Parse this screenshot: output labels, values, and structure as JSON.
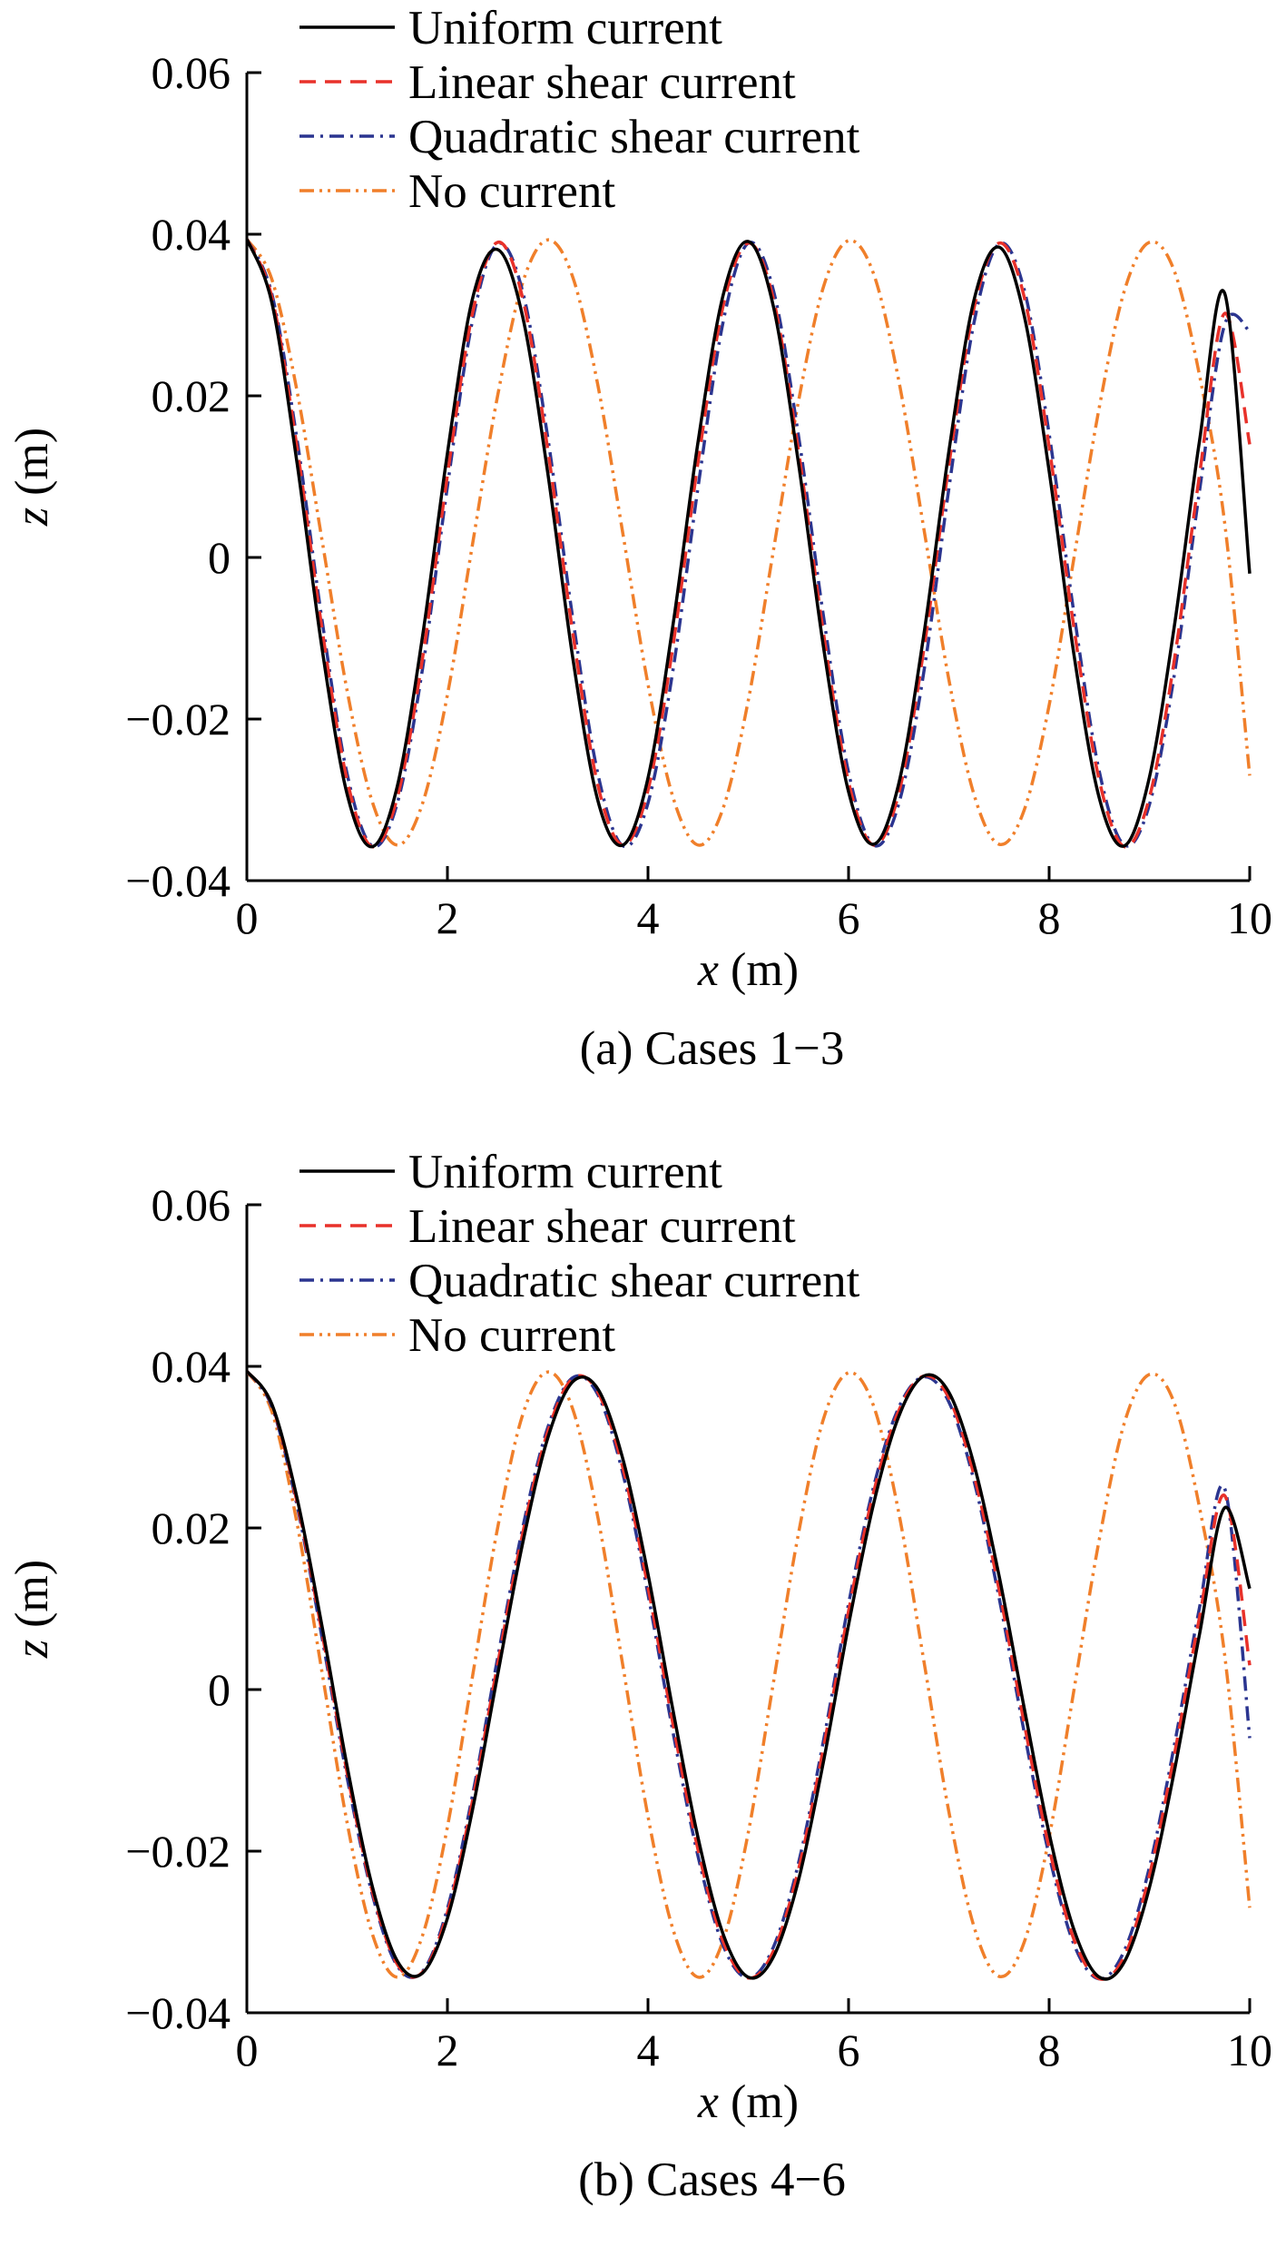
{
  "chart_data": [
    {
      "type": "line",
      "caption": "(a) Cases 1−3",
      "xlabel": {
        "var": "x",
        "unit": " (m)"
      },
      "ylabel": {
        "var": "z",
        "unit": " (m)"
      },
      "xlim": [
        0,
        10
      ],
      "ylim": [
        -0.04,
        0.06
      ],
      "xticks": [
        "0",
        "2",
        "4",
        "6",
        "8",
        "10"
      ],
      "yticks": [
        "−0.04",
        "−0.02",
        "0",
        "0.02",
        "0.04",
        "0.06"
      ],
      "grid": false,
      "legend_position": "top",
      "x": [
        0,
        0.25,
        0.5,
        0.75,
        1,
        1.25,
        1.5,
        1.75,
        2,
        2.25,
        2.5,
        2.75,
        3,
        3.25,
        3.5,
        3.75,
        4,
        4.25,
        4.5,
        4.75,
        5,
        5.25,
        5.5,
        5.75,
        6,
        6.25,
        6.5,
        6.75,
        7,
        7.25,
        7.5,
        7.75,
        8,
        8.25,
        8.5,
        8.75,
        9,
        9.25,
        9.5,
        9.75,
        10
      ],
      "series": [
        {
          "name": "Uniform current",
          "color": "#000000",
          "dash": "solid",
          "values": [
            0.0394,
            0.0315,
            0.0117,
            -0.0113,
            -0.0293,
            -0.0358,
            -0.0283,
            -0.0099,
            0.0129,
            0.032,
            0.0381,
            0.0298,
            0.0105,
            -0.0124,
            -0.0301,
            -0.0356,
            -0.0273,
            -0.0083,
            0.0144,
            0.0325,
            0.0391,
            0.0311,
            0.0117,
            -0.0111,
            -0.029,
            -0.0355,
            -0.028,
            -0.0096,
            0.0131,
            0.0318,
            0.0384,
            0.03,
            0.0107,
            -0.0122,
            -0.0298,
            -0.0357,
            -0.0272,
            -0.0084,
            0.0145,
            0.0327,
            -0.002
          ]
        },
        {
          "name": "Linear shear current",
          "color": "#e8312a",
          "dash": "dashed",
          "values": [
            0.0394,
            0.0322,
            0.0136,
            -0.0089,
            -0.0276,
            -0.0358,
            -0.0297,
            -0.0126,
            0.0102,
            0.0302,
            0.039,
            0.0321,
            0.0134,
            -0.0093,
            -0.0282,
            -0.0356,
            -0.0288,
            -0.0109,
            0.0119,
            0.0312,
            0.0389,
            0.032,
            0.0132,
            -0.0094,
            -0.0278,
            -0.0356,
            -0.0292,
            -0.0114,
            0.0114,
            0.0308,
            0.0389,
            0.0323,
            0.0137,
            -0.0089,
            -0.0276,
            -0.0358,
            -0.0297,
            -0.0126,
            0.0103,
            0.0302,
            0.014
          ]
        },
        {
          "name": "Quadratic shear current",
          "color": "#2b3590",
          "dash": "dashdot",
          "values": [
            0.0394,
            0.0326,
            0.0146,
            -0.0078,
            -0.0268,
            -0.0357,
            -0.0304,
            -0.0139,
            0.0088,
            0.0293,
            0.0388,
            0.0329,
            0.0149,
            -0.0075,
            -0.0268,
            -0.0357,
            -0.0304,
            -0.0139,
            0.0088,
            0.0292,
            0.0389,
            0.0331,
            0.0151,
            -0.0073,
            -0.0266,
            -0.0356,
            -0.0305,
            -0.0142,
            0.0085,
            0.029,
            0.0388,
            0.0332,
            0.0153,
            -0.0071,
            -0.0265,
            -0.0356,
            -0.0306,
            -0.0144,
            0.0083,
            0.0288,
            0.028
          ]
        },
        {
          "name": "No current",
          "color": "#f07f2a",
          "dash": "dashdotdot",
          "values": [
            0.0394,
            0.0344,
            0.0206,
            0.0021,
            -0.0165,
            -0.0302,
            -0.0356,
            -0.0305,
            -0.017,
            0.0016,
            0.02,
            0.034,
            0.0393,
            0.0347,
            0.0213,
            0.0029,
            -0.0157,
            -0.0297,
            -0.0356,
            -0.031,
            -0.0177,
            0.0008,
            0.0193,
            0.0335,
            0.0392,
            0.0351,
            0.0219,
            0.0036,
            -0.0151,
            -0.0293,
            -0.0355,
            -0.0313,
            -0.0183,
            0.0001,
            0.0186,
            0.033,
            0.039,
            0.0354,
            0.0225,
            0.0043,
            -0.027
          ]
        }
      ]
    },
    {
      "type": "line",
      "caption": "(b) Cases 4−6",
      "xlabel": {
        "var": "x",
        "unit": " (m)"
      },
      "ylabel": {
        "var": "z",
        "unit": " (m)"
      },
      "xlim": [
        0,
        10
      ],
      "ylim": [
        -0.04,
        0.06
      ],
      "xticks": [
        "0",
        "2",
        "4",
        "6",
        "8",
        "10"
      ],
      "yticks": [
        "−0.04",
        "−0.02",
        "0",
        "0.02",
        "0.04",
        "0.06"
      ],
      "grid": false,
      "legend_position": "top",
      "x": [
        0,
        0.25,
        0.5,
        0.75,
        1,
        1.25,
        1.5,
        1.75,
        2,
        2.25,
        2.5,
        2.75,
        3,
        3.25,
        3.5,
        3.75,
        4,
        4.25,
        4.5,
        4.75,
        5,
        5.25,
        5.5,
        5.75,
        6,
        6.25,
        6.5,
        6.75,
        7,
        7.25,
        7.5,
        7.75,
        8,
        8.25,
        8.5,
        8.75,
        9,
        9.25,
        9.5,
        9.75,
        10
      ],
      "series": [
        {
          "name": "Uniform current",
          "color": "#000000",
          "dash": "solid",
          "values": [
            0.0394,
            0.0353,
            0.0237,
            0.0078,
            -0.0095,
            -0.0243,
            -0.0336,
            -0.0351,
            -0.0283,
            -0.0149,
            0.0018,
            0.0181,
            0.0311,
            0.0381,
            0.0372,
            0.0285,
            0.0143,
            -0.0026,
            -0.0184,
            -0.0303,
            -0.0356,
            -0.0331,
            -0.0236,
            -0.0089,
            0.008,
            0.023,
            0.0338,
            0.0388,
            0.0368,
            0.0279,
            0.0141,
            -0.0022,
            -0.0178,
            -0.0298,
            -0.0356,
            -0.0337,
            -0.0245,
            -0.01,
            0.0069,
            0.0225,
            0.0125
          ]
        },
        {
          "name": "Linear shear current",
          "color": "#e8312a",
          "dash": "dashed",
          "values": [
            0.0394,
            0.0352,
            0.0232,
            0.007,
            -0.0103,
            -0.0249,
            -0.034,
            -0.035,
            -0.0276,
            -0.0138,
            0.0031,
            0.0193,
            0.0319,
            0.0385,
            0.0368,
            0.0274,
            0.0127,
            -0.0043,
            -0.0199,
            -0.0312,
            -0.0357,
            -0.0324,
            -0.0223,
            -0.0072,
            0.0097,
            0.0244,
            0.0345,
            0.0388,
            0.0361,
            0.0266,
            0.0124,
            -0.0041,
            -0.0196,
            -0.031,
            -0.0358,
            -0.033,
            -0.023,
            -0.008,
            0.009,
            0.024,
            0.003
          ]
        },
        {
          "name": "Quadratic shear current",
          "color": "#2b3590",
          "dash": "dashdot",
          "values": [
            0.0394,
            0.035,
            0.0228,
            0.0064,
            -0.0109,
            -0.0253,
            -0.0342,
            -0.0349,
            -0.0271,
            -0.0131,
            0.0039,
            0.02,
            0.0324,
            0.0386,
            0.0365,
            0.0267,
            0.0118,
            -0.0053,
            -0.0207,
            -0.0317,
            -0.0357,
            -0.0319,
            -0.0215,
            -0.0063,
            0.0106,
            0.0251,
            0.0349,
            0.0387,
            0.0356,
            0.0259,
            0.0114,
            -0.0052,
            -0.0205,
            -0.0316,
            -0.0358,
            -0.0323,
            -0.022,
            -0.0068,
            0.0102,
            0.0249,
            -0.006
          ]
        },
        {
          "name": "No current",
          "color": "#f07f2a",
          "dash": "dashdotdot",
          "values": [
            0.0394,
            0.0344,
            0.0206,
            0.0021,
            -0.0165,
            -0.0302,
            -0.0356,
            -0.0305,
            -0.017,
            0.0016,
            0.02,
            0.034,
            0.0393,
            0.0347,
            0.0213,
            0.0029,
            -0.0157,
            -0.0297,
            -0.0356,
            -0.031,
            -0.0177,
            0.0008,
            0.0193,
            0.0335,
            0.0392,
            0.0351,
            0.0219,
            0.0036,
            -0.0151,
            -0.0293,
            -0.0355,
            -0.0313,
            -0.0183,
            0.0001,
            0.0186,
            0.033,
            0.039,
            0.0354,
            0.0225,
            0.0043,
            -0.027
          ]
        }
      ]
    }
  ]
}
